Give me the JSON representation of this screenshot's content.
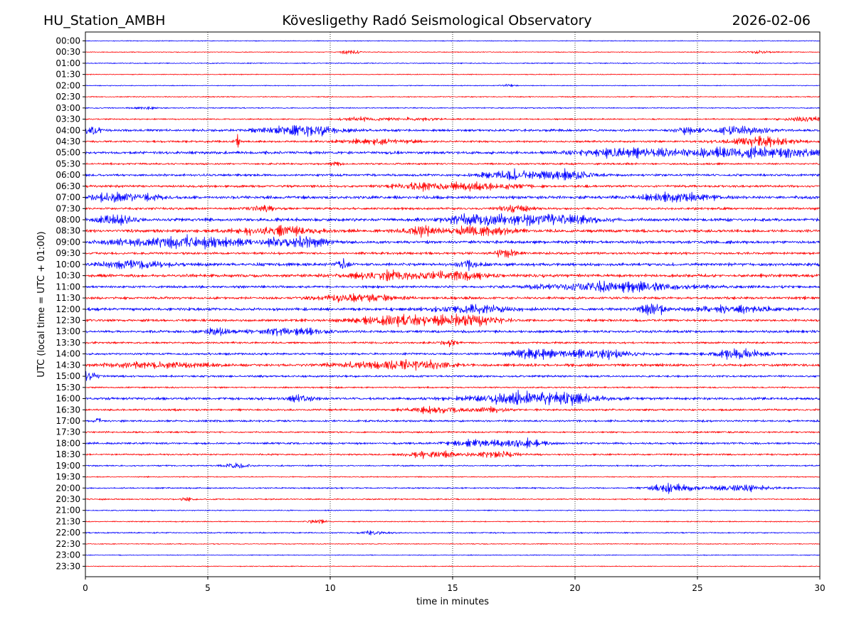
{
  "chart_data": {
    "type": "line",
    "station": "HU_Station_AMBH",
    "title": "Kövesligethy Radó Seismological Observatory",
    "date": "2026-02-06",
    "xlabel": "time in minutes",
    "ylabel": "UTC (local time = UTC + 01:00)",
    "xlim": [
      0,
      30
    ],
    "xticks": [
      "0",
      "5",
      "10",
      "15",
      "20",
      "25",
      "30"
    ],
    "xtick_values": [
      0,
      5,
      10,
      15,
      20,
      25,
      30
    ],
    "grid": "vertical dotted at major x ticks",
    "colors": [
      "#0000ff",
      "#ff0000"
    ],
    "row_labels": [
      "00:00",
      "00:30",
      "01:00",
      "01:30",
      "02:00",
      "02:30",
      "03:00",
      "03:30",
      "04:00",
      "04:30",
      "05:00",
      "05:30",
      "06:00",
      "06:30",
      "07:00",
      "07:30",
      "08:00",
      "08:30",
      "09:00",
      "09:30",
      "10:00",
      "10:30",
      "11:00",
      "11:30",
      "12:00",
      "12:30",
      "13:00",
      "13:30",
      "14:00",
      "14:30",
      "15:00",
      "15:30",
      "16:00",
      "16:30",
      "17:00",
      "17:30",
      "18:00",
      "18:30",
      "19:00",
      "19:30",
      "20:00",
      "20:30",
      "21:00",
      "21:30",
      "22:00",
      "22:30",
      "23:00",
      "23:30"
    ],
    "row_noise": [
      0.12,
      0.12,
      0.15,
      0.12,
      0.12,
      0.15,
      0.16,
      0.2,
      0.35,
      0.3,
      0.4,
      0.28,
      0.35,
      0.35,
      0.45,
      0.35,
      0.45,
      0.45,
      0.45,
      0.35,
      0.45,
      0.45,
      0.35,
      0.38,
      0.42,
      0.35,
      0.38,
      0.28,
      0.32,
      0.4,
      0.3,
      0.22,
      0.38,
      0.3,
      0.3,
      0.25,
      0.3,
      0.25,
      0.2,
      0.15,
      0.2,
      0.2,
      0.15,
      0.15,
      0.18,
      0.13,
      0.12,
      0.12
    ],
    "bursts": [
      [
        1,
        10.8,
        0.4,
        0.6
      ],
      [
        1,
        27.5,
        0.6,
        0.35
      ],
      [
        4,
        17.2,
        0.3,
        0.3
      ],
      [
        6,
        2.5,
        0.5,
        0.3
      ],
      [
        7,
        11.3,
        0.8,
        0.55
      ],
      [
        7,
        13.5,
        1.2,
        0.4
      ],
      [
        7,
        29.5,
        1.0,
        0.6
      ],
      [
        8,
        0.2,
        0.4,
        1.1
      ],
      [
        8,
        8.8,
        1.5,
        1.5
      ],
      [
        8,
        24.6,
        0.5,
        0.8
      ],
      [
        8,
        26.8,
        1.0,
        1.2
      ],
      [
        9,
        6.2,
        0.1,
        2.0
      ],
      [
        9,
        12.0,
        1.5,
        0.6
      ],
      [
        9,
        27.5,
        1.3,
        1.3
      ],
      [
        10,
        22.5,
        2.5,
        1.0
      ],
      [
        10,
        26.8,
        2.0,
        1.3
      ],
      [
        10,
        29.3,
        0.8,
        1.0
      ],
      [
        11,
        10.2,
        0.2,
        0.5
      ],
      [
        12,
        17.5,
        1.2,
        1.2
      ],
      [
        12,
        19.8,
        1.0,
        1.1
      ],
      [
        13,
        13.8,
        1.2,
        0.9
      ],
      [
        13,
        16.3,
        1.5,
        0.9
      ],
      [
        14,
        1.5,
        1.5,
        1.1
      ],
      [
        14,
        24.2,
        1.5,
        0.9
      ],
      [
        15,
        7.2,
        0.4,
        1.0
      ],
      [
        15,
        17.5,
        0.6,
        0.9
      ],
      [
        16,
        1.2,
        0.8,
        1.3
      ],
      [
        16,
        16.0,
        1.2,
        1.3
      ],
      [
        16,
        18.8,
        2.0,
        1.3
      ],
      [
        17,
        7.8,
        1.5,
        1.1
      ],
      [
        17,
        13.8,
        0.8,
        1.3
      ],
      [
        17,
        16.2,
        1.2,
        1.2
      ],
      [
        18,
        4.0,
        2.5,
        1.5
      ],
      [
        18,
        8.8,
        1.2,
        1.3
      ],
      [
        19,
        17.2,
        0.5,
        1.0
      ],
      [
        20,
        2.0,
        1.2,
        1.1
      ],
      [
        20,
        10.5,
        0.3,
        1.1
      ],
      [
        20,
        15.7,
        0.4,
        1.1
      ],
      [
        21,
        12.8,
        1.8,
        1.1
      ],
      [
        21,
        15.5,
        1.0,
        0.9
      ],
      [
        22,
        21.5,
        3.0,
        1.3
      ],
      [
        23,
        11.0,
        1.5,
        0.9
      ],
      [
        24,
        15.8,
        1.5,
        1.1
      ],
      [
        24,
        23.2,
        0.5,
        1.6
      ],
      [
        24,
        26.5,
        1.5,
        0.9
      ],
      [
        25,
        13.2,
        2.0,
        1.3
      ],
      [
        25,
        15.8,
        1.2,
        1.2
      ],
      [
        26,
        5.4,
        0.5,
        1.2
      ],
      [
        26,
        8.2,
        1.5,
        0.8
      ],
      [
        27,
        14.8,
        0.3,
        1.0
      ],
      [
        28,
        18.3,
        1.0,
        1.2
      ],
      [
        28,
        21.0,
        1.5,
        1.1
      ],
      [
        28,
        26.7,
        1.0,
        1.3
      ],
      [
        29,
        3.0,
        2.0,
        0.7
      ],
      [
        29,
        11.8,
        1.5,
        0.9
      ],
      [
        29,
        13.8,
        1.2,
        0.9
      ],
      [
        30,
        0.2,
        0.3,
        1.5
      ],
      [
        32,
        8.8,
        0.5,
        0.8
      ],
      [
        32,
        17.8,
        2.0,
        1.3
      ],
      [
        32,
        19.5,
        1.5,
        1.0
      ],
      [
        33,
        14.3,
        1.0,
        0.9
      ],
      [
        33,
        16.5,
        0.8,
        0.7
      ],
      [
        34,
        0.5,
        0.1,
        1.3
      ],
      [
        36,
        18.0,
        0.8,
        1.1
      ],
      [
        36,
        16.0,
        1.2,
        0.8
      ],
      [
        37,
        14.3,
        1.2,
        0.9
      ],
      [
        37,
        16.8,
        0.8,
        0.9
      ],
      [
        38,
        6.2,
        0.5,
        0.7
      ],
      [
        40,
        24.0,
        1.0,
        1.1
      ],
      [
        40,
        26.8,
        1.2,
        0.9
      ],
      [
        41,
        4.2,
        0.3,
        0.5
      ],
      [
        43,
        9.5,
        0.4,
        0.5
      ],
      [
        44,
        11.8,
        0.6,
        0.5
      ]
    ]
  }
}
